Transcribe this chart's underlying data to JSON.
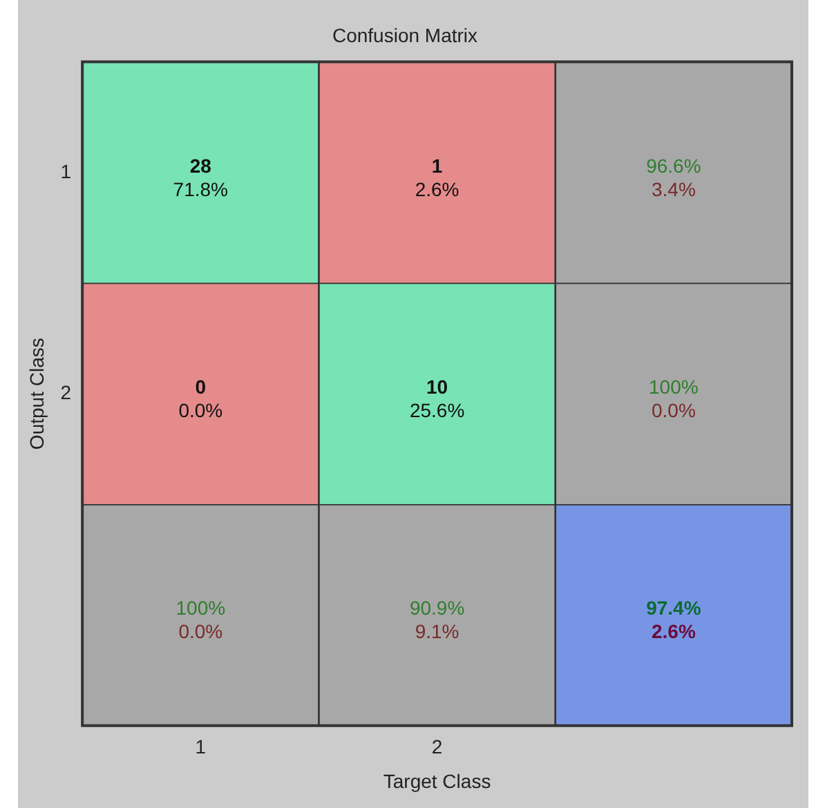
{
  "chart_data": {
    "type": "heatmap",
    "title": "Confusion Matrix",
    "xlabel": "Target Class",
    "ylabel": "Output Class",
    "categories": [
      "1",
      "2",
      null
    ],
    "y_categories": [
      "1",
      "2",
      null
    ],
    "cells": [
      [
        28,
        1,
        96.6
      ],
      [
        0,
        10,
        100
      ],
      [
        100,
        90.9,
        97.4
      ]
    ],
    "cell_labels": [
      [
        "28",
        "1",
        "96.6%"
      ],
      [
        "0",
        "10",
        "100%"
      ],
      [
        "100%",
        "90.9%",
        "97.4%"
      ]
    ],
    "annotations": [
      "71.8%",
      "2.6%",
      "3.4%",
      "0.0%",
      "25.6%",
      "0.0%",
      "0.0%",
      "9.1%",
      "2.6%"
    ],
    "colors": [
      [
        "#78e3b4",
        "#e58b8b",
        "#a8a8a8"
      ],
      [
        "#e58b8b",
        "#78e3b4",
        "#a8a8a8"
      ],
      [
        "#a8a8a8",
        "#a8a8a8",
        "#7895e5"
      ]
    ]
  }
}
